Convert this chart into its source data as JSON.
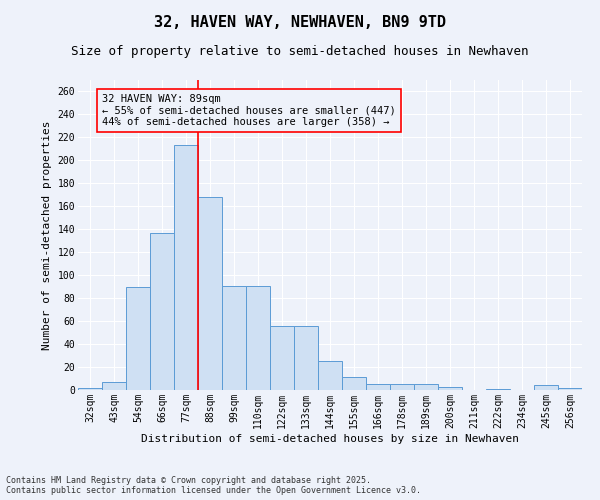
{
  "title": "32, HAVEN WAY, NEWHAVEN, BN9 9TD",
  "subtitle": "Size of property relative to semi-detached houses in Newhaven",
  "xlabel": "Distribution of semi-detached houses by size in Newhaven",
  "ylabel": "Number of semi-detached properties",
  "categories": [
    "32sqm",
    "43sqm",
    "54sqm",
    "66sqm",
    "77sqm",
    "88sqm",
    "99sqm",
    "110sqm",
    "122sqm",
    "133sqm",
    "144sqm",
    "155sqm",
    "166sqm",
    "178sqm",
    "189sqm",
    "200sqm",
    "211sqm",
    "222sqm",
    "234sqm",
    "245sqm",
    "256sqm"
  ],
  "values": [
    2,
    7,
    90,
    137,
    213,
    168,
    91,
    91,
    56,
    56,
    25,
    11,
    5,
    5,
    5,
    3,
    0,
    1,
    0,
    4,
    2
  ],
  "bar_color": "#cfe0f3",
  "bar_edge_color": "#5b9bd5",
  "annotation_text": "32 HAVEN WAY: 89sqm\n← 55% of semi-detached houses are smaller (447)\n44% of semi-detached houses are larger (358) →",
  "ylim": [
    0,
    270
  ],
  "yticks": [
    0,
    20,
    40,
    60,
    80,
    100,
    120,
    140,
    160,
    180,
    200,
    220,
    240,
    260
  ],
  "footer_line1": "Contains HM Land Registry data © Crown copyright and database right 2025.",
  "footer_line2": "Contains public sector information licensed under the Open Government Licence v3.0.",
  "bg_color": "#eef2fa",
  "grid_color": "#ffffff",
  "title_fontsize": 11,
  "subtitle_fontsize": 9,
  "axis_label_fontsize": 8,
  "tick_fontsize": 7,
  "footer_fontsize": 6,
  "annot_fontsize": 7.5
}
